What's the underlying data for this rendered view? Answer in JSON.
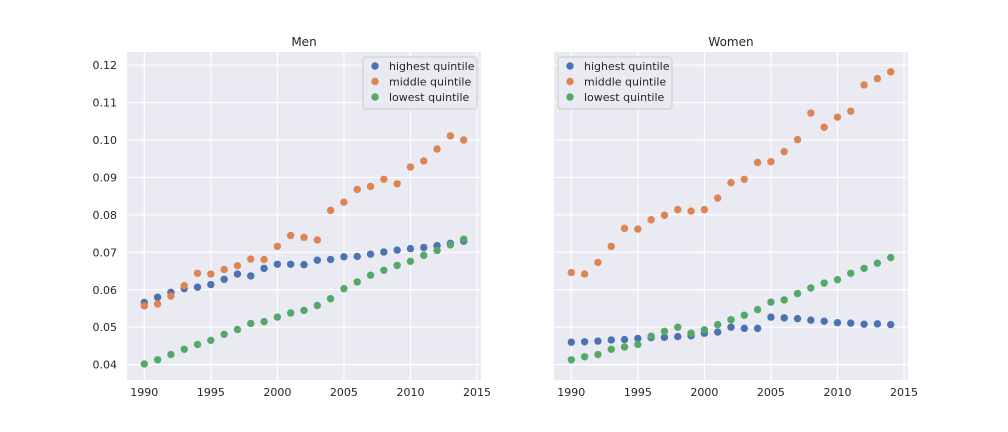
{
  "chart_data": [
    {
      "type": "scatter",
      "title": "Men",
      "xlabel": "",
      "ylabel": "",
      "xlim": [
        1988.7,
        2015.3
      ],
      "ylim": [
        0.0359,
        0.1235
      ],
      "xticks": [
        1990,
        1995,
        2000,
        2005,
        2010,
        2015
      ],
      "yticks": [
        0.04,
        0.05,
        0.06,
        0.07,
        0.08,
        0.09,
        0.1,
        0.11,
        0.12
      ],
      "ytick_labels": [
        "0.04",
        "0.05",
        "0.06",
        "0.07",
        "0.08",
        "0.09",
        "0.10",
        "0.11",
        "0.12"
      ],
      "show_yticks": true,
      "grid": true,
      "legend_position": "upper right",
      "x": [
        1990,
        1991,
        1992,
        1993,
        1994,
        1995,
        1996,
        1997,
        1998,
        1999,
        2000,
        2001,
        2002,
        2003,
        2004,
        2005,
        2006,
        2007,
        2008,
        2009,
        2010,
        2011,
        2012,
        2013,
        2014
      ],
      "series": [
        {
          "name": "highest quintile",
          "color": "#4c72b0",
          "values": [
            0.0566,
            0.058,
            0.0593,
            0.0603,
            0.0607,
            0.0614,
            0.0628,
            0.0642,
            0.0637,
            0.0657,
            0.0668,
            0.0668,
            0.0667,
            0.0679,
            0.0681,
            0.0688,
            0.0689,
            0.0695,
            0.0701,
            0.0706,
            0.071,
            0.0713,
            0.0718,
            0.0724,
            0.073
          ]
        },
        {
          "name": "middle quintile",
          "color": "#dd8452",
          "values": [
            0.0557,
            0.0562,
            0.0583,
            0.0611,
            0.0644,
            0.0642,
            0.0654,
            0.0664,
            0.0682,
            0.0681,
            0.0716,
            0.0745,
            0.074,
            0.0733,
            0.0812,
            0.0834,
            0.0868,
            0.0876,
            0.0895,
            0.0883,
            0.0928,
            0.0944,
            0.0976,
            0.1011,
            0.1
          ]
        },
        {
          "name": "lowest quintile",
          "color": "#55a868",
          "values": [
            0.0402,
            0.0413,
            0.0427,
            0.0441,
            0.0454,
            0.0465,
            0.0481,
            0.0494,
            0.051,
            0.0515,
            0.0527,
            0.0538,
            0.0545,
            0.0558,
            0.0576,
            0.0603,
            0.0621,
            0.0639,
            0.0652,
            0.0665,
            0.0676,
            0.0692,
            0.0705,
            0.072,
            0.0735
          ]
        }
      ]
    },
    {
      "type": "scatter",
      "title": "Women",
      "xlabel": "",
      "ylabel": "",
      "xlim": [
        1988.7,
        2015.3
      ],
      "ylim": [
        0.0359,
        0.1235
      ],
      "xticks": [
        1990,
        1995,
        2000,
        2005,
        2010,
        2015
      ],
      "show_yticks": false,
      "grid": true,
      "legend_position": "upper left",
      "x": [
        1990,
        1991,
        1992,
        1993,
        1994,
        1995,
        1996,
        1997,
        1998,
        1999,
        2000,
        2001,
        2002,
        2003,
        2004,
        2005,
        2006,
        2007,
        2008,
        2009,
        2010,
        2011,
        2012,
        2013,
        2014
      ],
      "series": [
        {
          "name": "highest quintile",
          "color": "#4c72b0",
          "values": [
            0.046,
            0.0461,
            0.0463,
            0.0466,
            0.0467,
            0.047,
            0.0472,
            0.0473,
            0.0475,
            0.0477,
            0.0484,
            0.0487,
            0.05,
            0.0497,
            0.0497,
            0.0527,
            0.0525,
            0.0523,
            0.0519,
            0.0516,
            0.0512,
            0.0511,
            0.0508,
            0.0509,
            0.0507
          ]
        },
        {
          "name": "middle quintile",
          "color": "#dd8452",
          "values": [
            0.0646,
            0.0642,
            0.0673,
            0.0716,
            0.0764,
            0.0762,
            0.0787,
            0.0799,
            0.0814,
            0.081,
            0.0814,
            0.0845,
            0.0886,
            0.0895,
            0.094,
            0.0942,
            0.0969,
            0.1001,
            0.1072,
            0.1034,
            0.1061,
            0.1077,
            0.1147,
            0.1164,
            0.1182
          ]
        },
        {
          "name": "lowest quintile",
          "color": "#55a868",
          "values": [
            0.0413,
            0.0421,
            0.0427,
            0.0441,
            0.0447,
            0.0454,
            0.0476,
            0.0489,
            0.05,
            0.0484,
            0.0493,
            0.0507,
            0.052,
            0.0532,
            0.0547,
            0.0567,
            0.0573,
            0.059,
            0.0605,
            0.0618,
            0.0627,
            0.0644,
            0.0657,
            0.0671,
            0.0686
          ]
        }
      ]
    }
  ]
}
